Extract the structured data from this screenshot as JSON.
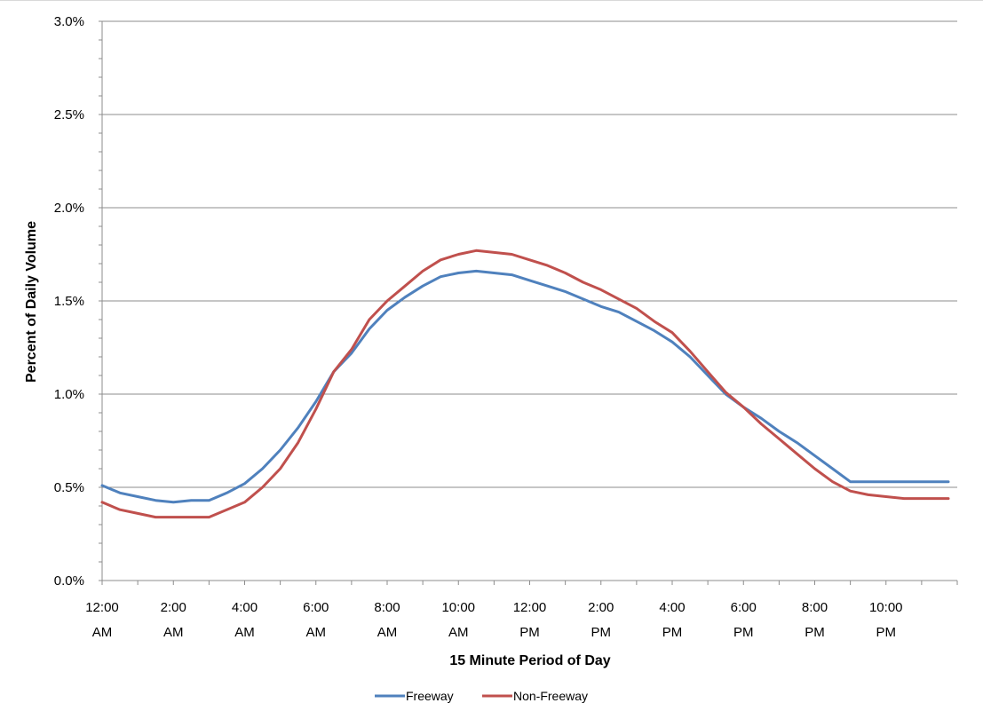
{
  "chart_data": {
    "type": "line",
    "title": "",
    "xlabel": "15 Minute Period of Day",
    "ylabel": "Percent of Daily Volume",
    "ylim": [
      0,
      3.0
    ],
    "y_unit": "%",
    "yticks": [
      "0.0%",
      "0.5%",
      "1.0%",
      "1.5%",
      "2.0%",
      "2.5%",
      "3.0%"
    ],
    "xtick_labels": [
      [
        "12:00",
        "AM"
      ],
      [
        "2:00",
        "AM"
      ],
      [
        "4:00",
        "AM"
      ],
      [
        "6:00",
        "AM"
      ],
      [
        "8:00",
        "AM"
      ],
      [
        "10:00",
        "AM"
      ],
      [
        "12:00",
        "PM"
      ],
      [
        "2:00",
        "PM"
      ],
      [
        "4:00",
        "PM"
      ],
      [
        "6:00",
        "PM"
      ],
      [
        "8:00",
        "PM"
      ],
      [
        "10:00",
        "PM"
      ]
    ],
    "grid": "horizontal",
    "legend_position": "bottom",
    "series": [
      {
        "name": "Freeway",
        "color": "#4f81bd",
        "x_hours": [
          0,
          0.5,
          1,
          1.5,
          2,
          2.5,
          3,
          3.5,
          4,
          4.5,
          5,
          5.5,
          6,
          6.5,
          7,
          7.5,
          8,
          8.5,
          9,
          9.5,
          10,
          10.5,
          11,
          11.5,
          12,
          12.5,
          13,
          13.5,
          14,
          14.5,
          15,
          15.5,
          16,
          16.5,
          17,
          17.5,
          18,
          18.5,
          19,
          19.5,
          20,
          20.5,
          21,
          21.5,
          22,
          22.5,
          23,
          23.75
        ],
        "values": [
          0.51,
          0.47,
          0.45,
          0.43,
          0.42,
          0.43,
          0.43,
          0.47,
          0.52,
          0.6,
          0.7,
          0.82,
          0.96,
          1.12,
          1.22,
          1.35,
          1.45,
          1.52,
          1.58,
          1.63,
          1.65,
          1.66,
          1.65,
          1.64,
          1.61,
          1.58,
          1.55,
          1.51,
          1.47,
          1.44,
          1.39,
          1.34,
          1.28,
          1.2,
          1.1,
          1.0,
          0.93,
          0.87,
          0.8,
          0.74,
          0.67,
          0.6,
          0.53,
          0.53,
          0.53,
          0.53,
          0.53,
          0.53
        ]
      },
      {
        "name": "Non-Freeway",
        "color": "#c0504d",
        "x_hours": [
          0,
          0.5,
          1,
          1.5,
          2,
          2.5,
          3,
          3.5,
          4,
          4.5,
          5,
          5.5,
          6,
          6.5,
          7,
          7.5,
          8,
          8.5,
          9,
          9.5,
          10,
          10.5,
          11,
          11.5,
          12,
          12.5,
          13,
          13.5,
          14,
          14.5,
          15,
          15.5,
          16,
          16.5,
          17,
          17.5,
          18,
          18.5,
          19,
          19.5,
          20,
          20.5,
          21,
          21.5,
          22,
          22.5,
          23,
          23.75
        ],
        "values": [
          0.42,
          0.38,
          0.36,
          0.34,
          0.34,
          0.34,
          0.34,
          0.38,
          0.42,
          0.5,
          0.6,
          0.74,
          0.92,
          1.12,
          1.24,
          1.4,
          1.5,
          1.58,
          1.66,
          1.72,
          1.75,
          1.77,
          1.76,
          1.75,
          1.72,
          1.69,
          1.65,
          1.6,
          1.56,
          1.51,
          1.46,
          1.39,
          1.33,
          1.23,
          1.12,
          1.01,
          0.93,
          0.84,
          0.76,
          0.68,
          0.6,
          0.53,
          0.48,
          0.46,
          0.45,
          0.44,
          0.44,
          0.44
        ]
      }
    ]
  }
}
